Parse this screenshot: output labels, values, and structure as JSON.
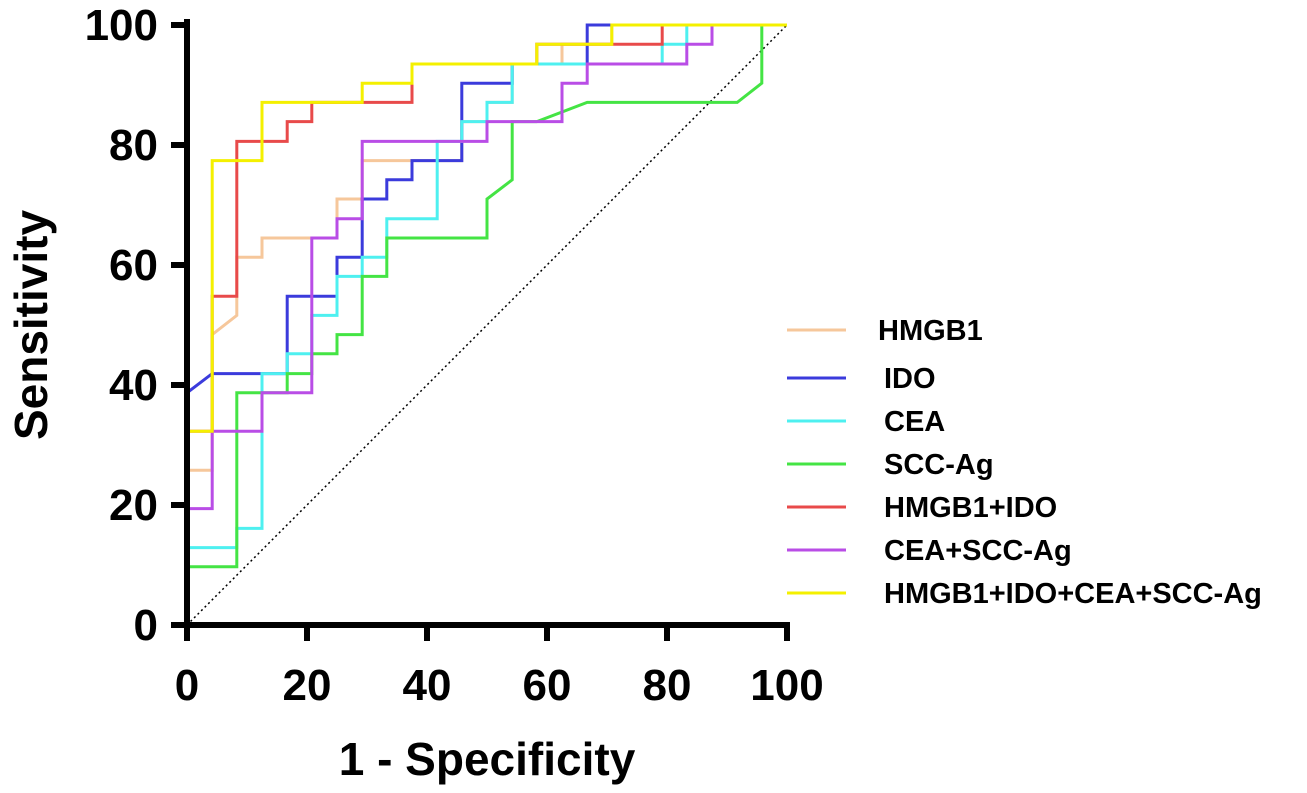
{
  "chart_data": {
    "type": "line",
    "xlabel": "1 - Specificity",
    "ylabel": "Sensitivity",
    "xlim": [
      0,
      100
    ],
    "ylim": [
      0,
      100
    ],
    "xticks": [
      "0",
      "20",
      "40",
      "60",
      "80",
      "100"
    ],
    "yticks": [
      "0",
      "20",
      "40",
      "60",
      "80",
      "100"
    ],
    "reference_line": {
      "x": [
        0,
        100
      ],
      "y": [
        0,
        100
      ],
      "style": "dotted"
    },
    "legend_position": "right",
    "series": [
      {
        "name": "HMGB1",
        "color": "#f6c79b",
        "x": [
          0,
          0,
          4.2,
          4.2,
          8.3,
          8.3,
          12.5,
          12.5,
          25,
          25,
          29.2,
          29.2,
          45.8,
          45.8,
          50,
          50,
          54.2,
          54.2,
          62.5,
          62.5,
          70.8,
          70.8,
          100
        ],
        "y": [
          0,
          25.8,
          25.8,
          48.4,
          51.6,
          61.3,
          61.3,
          64.5,
          64.5,
          71,
          71,
          77.4,
          77.4,
          83.9,
          83.9,
          87.1,
          87.1,
          93.5,
          93.5,
          96.8,
          96.8,
          100,
          100
        ]
      },
      {
        "name": "IDO",
        "color": "#3b3bdc",
        "x": [
          0,
          0,
          4.2,
          16.7,
          16.7,
          20.8,
          25,
          25,
          29.2,
          29.2,
          33.3,
          33.3,
          37.5,
          37.5,
          45.8,
          45.8,
          54.2,
          54.2,
          66.7,
          66.7,
          100
        ],
        "y": [
          0,
          38.7,
          41.9,
          41.9,
          54.8,
          54.8,
          54.8,
          61.3,
          61.3,
          71,
          71,
          74.2,
          74.2,
          77.4,
          77.4,
          90.3,
          90.3,
          93.5,
          93.5,
          100,
          100
        ]
      },
      {
        "name": "CEA",
        "color": "#4ef0f0",
        "x": [
          0,
          0,
          8.3,
          8.3,
          12.5,
          12.5,
          16.7,
          16.7,
          20.8,
          20.8,
          25,
          25,
          29.2,
          29.2,
          33.3,
          33.3,
          41.7,
          41.7,
          45.8,
          45.8,
          50,
          50,
          54.2,
          54.2,
          79.2,
          79.2,
          83.3,
          83.3,
          100
        ],
        "y": [
          0,
          12.9,
          12.9,
          16.1,
          16.1,
          41.9,
          41.9,
          45.2,
          45.2,
          51.6,
          51.6,
          58.1,
          58.1,
          61.3,
          61.3,
          67.7,
          67.7,
          80.6,
          80.6,
          83.9,
          83.9,
          87.1,
          87.1,
          93.5,
          93.5,
          96.8,
          96.8,
          100,
          100
        ]
      },
      {
        "name": "SCC-Ag",
        "color": "#44e444",
        "x": [
          0,
          0,
          8.3,
          8.3,
          16.7,
          16.7,
          20.8,
          20.8,
          25,
          25,
          29.2,
          29.2,
          33.3,
          33.3,
          50,
          50,
          54.2,
          54.2,
          58.3,
          66.7,
          91.7,
          95.8,
          95.8,
          100
        ],
        "y": [
          0,
          9.7,
          9.7,
          38.7,
          38.7,
          41.9,
          41.9,
          45.2,
          45.2,
          48.4,
          48.4,
          58.1,
          58.1,
          64.5,
          64.5,
          71,
          74.2,
          83.9,
          83.9,
          87.1,
          87.1,
          90.3,
          100,
          100
        ]
      },
      {
        "name": "HMGB1+IDO",
        "color": "#e84a4a",
        "x": [
          0,
          0,
          4.2,
          4.2,
          8.3,
          8.3,
          16.7,
          16.7,
          20.8,
          20.8,
          29.2,
          29.2,
          37.5,
          37.5,
          58.3,
          58.3,
          70.8,
          70.8,
          79.2,
          79.2,
          100
        ],
        "y": [
          0,
          32.3,
          32.3,
          54.8,
          54.8,
          80.6,
          80.6,
          83.9,
          83.9,
          87.1,
          87.1,
          87.1,
          87.1,
          93.5,
          93.5,
          96.8,
          96.8,
          96.8,
          96.8,
          100,
          100
        ]
      },
      {
        "name": "CEA+SCC-Ag",
        "color": "#b94de6",
        "x": [
          0,
          0,
          4.2,
          4.2,
          12.5,
          12.5,
          20.8,
          20.8,
          25,
          25,
          29.2,
          29.2,
          50,
          50,
          62.5,
          62.5,
          66.7,
          66.7,
          83.3,
          83.3,
          87.5,
          87.5,
          100
        ],
        "y": [
          0,
          19.4,
          19.4,
          32.3,
          32.3,
          38.7,
          38.7,
          64.5,
          64.5,
          67.7,
          67.7,
          80.6,
          80.6,
          83.9,
          83.9,
          90.3,
          90.3,
          93.5,
          93.5,
          96.8,
          96.8,
          100,
          100
        ]
      },
      {
        "name": "HMGB1+IDO+CEA+SCC-Ag",
        "color": "#f4f000",
        "x": [
          0,
          0,
          4.2,
          4.2,
          12.5,
          12.5,
          29.2,
          29.2,
          37.5,
          37.5,
          58.3,
          58.3,
          70.8,
          70.8,
          100
        ],
        "y": [
          0,
          32.3,
          32.3,
          77.4,
          77.4,
          87.1,
          87.1,
          90.3,
          90.3,
          93.5,
          93.5,
          96.8,
          96.8,
          100,
          100
        ]
      }
    ]
  }
}
